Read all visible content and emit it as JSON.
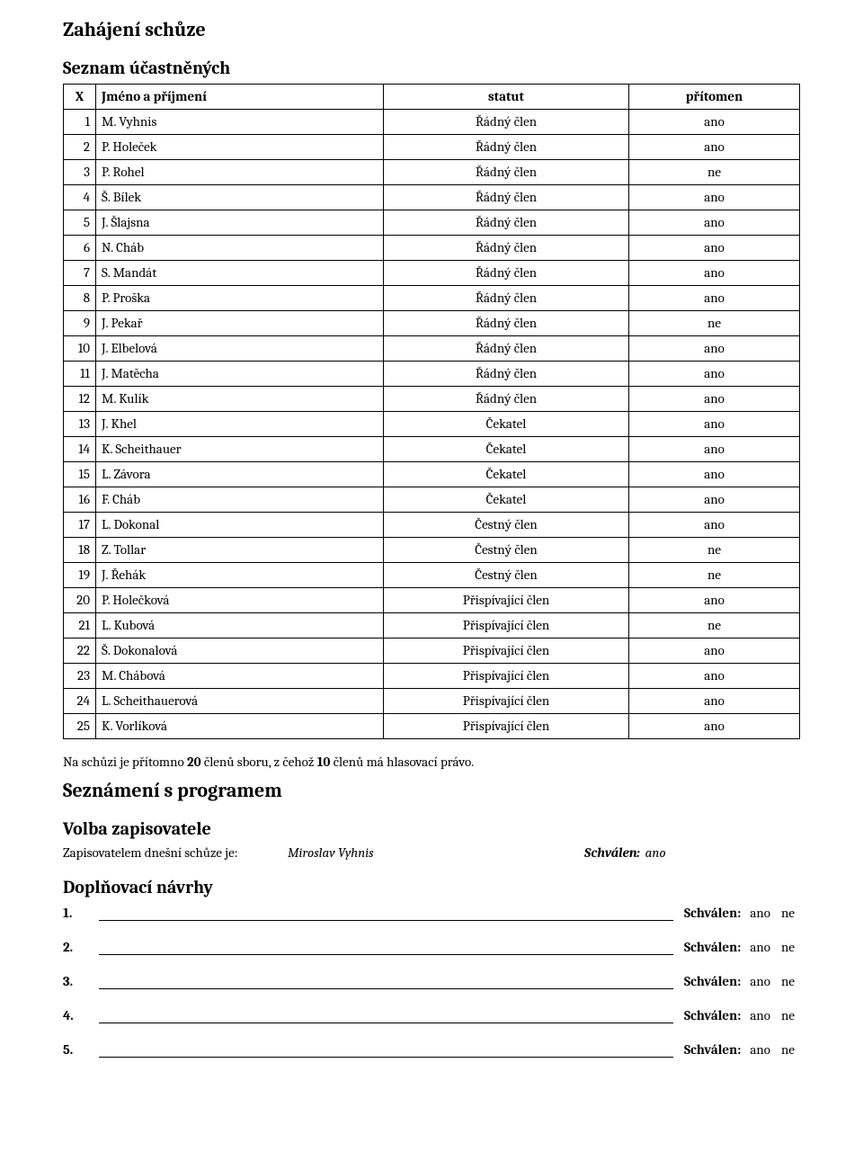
{
  "headings": {
    "start": "Zahájení schůze",
    "attendees": "Seznam účastněných",
    "program": "Seznámení s programem",
    "recorder": "Volba zapisovatele",
    "addl": "Doplňovací návrhy"
  },
  "table": {
    "header": {
      "x": "X",
      "name": "Jméno a příjmení",
      "status": "statut",
      "present": "přítomen"
    },
    "rows": [
      {
        "n": "1",
        "name": "M. Vyhnis",
        "status": "Řádný člen",
        "present": "ano"
      },
      {
        "n": "2",
        "name": "P. Holeček",
        "status": "Řádný člen",
        "present": "ano"
      },
      {
        "n": "3",
        "name": "P. Rohel",
        "status": "Řádný člen",
        "present": "ne"
      },
      {
        "n": "4",
        "name": "Š. Bílek",
        "status": "Řádný člen",
        "present": "ano"
      },
      {
        "n": "5",
        "name": "J. Šlajsna",
        "status": "Řádný člen",
        "present": "ano"
      },
      {
        "n": "6",
        "name": "N. Cháb",
        "status": "Řádný člen",
        "present": "ano"
      },
      {
        "n": "7",
        "name": "S. Mandát",
        "status": "Řádný člen",
        "present": "ano"
      },
      {
        "n": "8",
        "name": "P. Proška",
        "status": "Řádný člen",
        "present": "ano"
      },
      {
        "n": "9",
        "name": "J. Pekař",
        "status": "Řádný člen",
        "present": "ne"
      },
      {
        "n": "10",
        "name": "J. Elbelová",
        "status": "Řádný člen",
        "present": "ano"
      },
      {
        "n": "11",
        "name": "J. Matěcha",
        "status": "Řádný člen",
        "present": "ano"
      },
      {
        "n": "12",
        "name": "M. Kulík",
        "status": "Řádný člen",
        "present": "ano"
      },
      {
        "n": "13",
        "name": "J. Khel",
        "status": "Čekatel",
        "present": "ano"
      },
      {
        "n": "14",
        "name": "K. Scheithauer",
        "status": "Čekatel",
        "present": "ano"
      },
      {
        "n": "15",
        "name": "L. Závora",
        "status": "Čekatel",
        "present": "ano"
      },
      {
        "n": "16",
        "name": "F. Cháb",
        "status": "Čekatel",
        "present": "ano"
      },
      {
        "n": "17",
        "name": "L. Dokonal",
        "status": "Čestný člen",
        "present": "ano"
      },
      {
        "n": "18",
        "name": "Z. Tollar",
        "status": "Čestný člen",
        "present": "ne"
      },
      {
        "n": "19",
        "name": "J. Řehák",
        "status": "Čestný člen",
        "present": "ne"
      },
      {
        "n": "20",
        "name": "P. Holečková",
        "status": "Přispívající člen",
        "present": "ano"
      },
      {
        "n": "21",
        "name": "L. Kubová",
        "status": "Přispívající člen",
        "present": "ne"
      },
      {
        "n": "22",
        "name": "Š. Dokonalová",
        "status": "Přispívající člen",
        "present": "ano"
      },
      {
        "n": "23",
        "name": "M. Chábová",
        "status": "Přispívající člen",
        "present": "ano"
      },
      {
        "n": "24",
        "name": "L. Scheithauerová",
        "status": "Přispívající člen",
        "present": "ano"
      },
      {
        "n": "25",
        "name": "K. Vorlíková",
        "status": "Přispívající člen",
        "present": "ano"
      }
    ]
  },
  "summary": {
    "pre1": "Na schůzi je přítomno ",
    "b1": "20",
    "mid": " členů sboru, z čehož ",
    "b2": "10",
    "post": " členů má hlasovací právo."
  },
  "recorder": {
    "label": "Zapisovatelem dnešní schůze je:",
    "name": "Miroslav Vyhnis",
    "approved_label": "Schválen:",
    "approved_value": "ano"
  },
  "proposals": {
    "approved_label": "Schválen:",
    "yes": "ano",
    "no": "ne",
    "items": [
      {
        "n": "1."
      },
      {
        "n": "2."
      },
      {
        "n": "3."
      },
      {
        "n": "4."
      },
      {
        "n": "5."
      }
    ]
  }
}
